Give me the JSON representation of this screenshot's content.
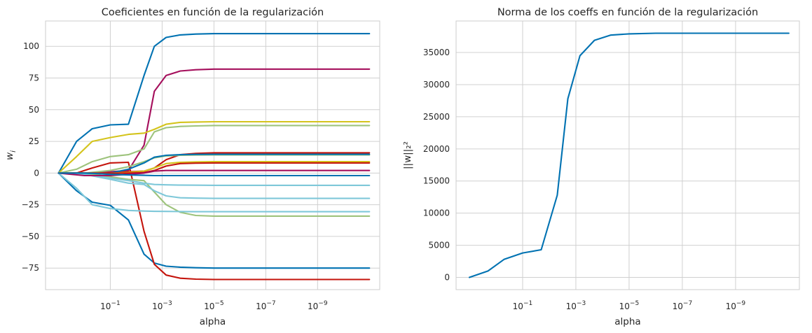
{
  "chart_data": [
    {
      "type": "line",
      "title": "Coeficientes en función de la regularización",
      "xlabel": "alpha",
      "ylabel": "w_i",
      "xscale": "log",
      "x_reversed": true,
      "grid": true,
      "x": [
        10,
        1,
        0.1,
        0.01,
        0.001,
        0.0001,
        1e-05,
        1e-06,
        1e-07,
        1e-08,
        1e-09,
        1e-10,
        1e-11
      ],
      "xlim": [
        31.6,
        4e-12
      ],
      "ylim": [
        -92,
        120
      ],
      "x_ticks": [
        {
          "value": 0.1,
          "base": "10",
          "exp": "−1"
        },
        {
          "value": 0.001,
          "base": "10",
          "exp": "−3"
        },
        {
          "value": 1e-05,
          "base": "10",
          "exp": "−5"
        },
        {
          "value": 1e-07,
          "base": "10",
          "exp": "−7"
        },
        {
          "value": 1e-09,
          "base": "10",
          "exp": "−9"
        }
      ],
      "y_ticks": [
        "100",
        "75",
        "50",
        "25",
        "0",
        "−25",
        "−50",
        "−75"
      ],
      "y_tick_values": [
        100,
        75,
        50,
        25,
        0,
        -25,
        -50,
        -75
      ],
      "series": [
        {
          "color": "#0072b2",
          "x": [
            10,
            2,
            0.5,
            0.1,
            0.02,
            0.005,
            0.002,
            0.0007,
            0.0002,
            5e-05,
            1e-05,
            1e-06,
            1e-11
          ],
          "values": [
            0,
            25,
            35,
            38,
            38.5,
            77,
            100,
            107,
            109,
            109.7,
            110,
            110,
            110
          ]
        },
        {
          "color": "#0072b2",
          "x": [
            10,
            2,
            0.5,
            0.1,
            0.02,
            0.005,
            0.002,
            0.0007,
            0.0002,
            5e-05,
            1e-05,
            1e-06,
            1e-11
          ],
          "values": [
            0,
            -14,
            -23,
            -25.5,
            -37,
            -64,
            -71,
            -73.5,
            -74.3,
            -74.7,
            -75,
            -75,
            -75
          ]
        },
        {
          "color": "#a50f5c",
          "x": [
            10,
            1,
            0.1,
            0.02,
            0.005,
            0.002,
            0.0007,
            0.0002,
            5e-05,
            1e-05,
            1e-06,
            1e-11
          ],
          "values": [
            0,
            0,
            1,
            2,
            22,
            64.5,
            77,
            80.5,
            81.5,
            82,
            82,
            82
          ]
        },
        {
          "color": "#d4c41c",
          "x": [
            10,
            2,
            0.5,
            0.1,
            0.02,
            0.005,
            0.002,
            0.0007,
            0.0002,
            5e-05,
            1e-05,
            1e-06,
            1e-11
          ],
          "values": [
            0,
            13,
            25,
            28,
            30.5,
            31.5,
            34.5,
            38.5,
            40,
            40.3,
            40.5,
            40.5,
            40.5
          ]
        },
        {
          "color": "#9dc37c",
          "x": [
            10,
            2,
            0.5,
            0.1,
            0.02,
            0.005,
            0.002,
            0.0007,
            0.0002,
            5e-05,
            1e-05,
            1e-06,
            1e-11
          ],
          "values": [
            0,
            3,
            9,
            13,
            14.5,
            19,
            32.5,
            35.8,
            36.8,
            37.2,
            37.5,
            37.5,
            37.5
          ]
        },
        {
          "color": "#c4140c",
          "x": [
            10,
            2,
            0.5,
            0.1,
            0.02,
            0.005,
            0.002,
            0.0007,
            0.0002,
            5e-05,
            1e-05,
            1e-06,
            1e-11
          ],
          "values": [
            0,
            0,
            4,
            8,
            8.5,
            -46,
            -72,
            -80.5,
            -83,
            -83.7,
            -84,
            -84,
            -84
          ]
        },
        {
          "color": "#c4140c",
          "x": [
            10,
            1,
            0.1,
            0.02,
            0.005,
            0.002,
            0.0007,
            0.0002,
            5e-05,
            1e-05,
            1e-06,
            1e-11
          ],
          "values": [
            0,
            0,
            0,
            1,
            1.5,
            4,
            10.5,
            14.5,
            15.5,
            16,
            16,
            16
          ]
        },
        {
          "color": "#9dc37c",
          "x": [
            10,
            1,
            0.1,
            0.02,
            0.005,
            0.002,
            0.0007,
            0.0002,
            5e-05,
            1e-05,
            1e-06,
            1e-11
          ],
          "values": [
            0,
            0,
            -3,
            -5,
            -6,
            -15,
            -25,
            -31,
            -33.5,
            -34,
            -34,
            -34
          ]
        },
        {
          "color": "#7fc8d9",
          "x": [
            10,
            2,
            0.5,
            0.1,
            0.02,
            0.005,
            0.002,
            0.0007,
            0.0002,
            5e-05,
            1e-05,
            1e-06,
            1e-11
          ],
          "values": [
            0,
            -12,
            -25,
            -28,
            -29.5,
            -30,
            -30.2,
            -30.3,
            -30.4,
            -30.5,
            -30.5,
            -30.5,
            -30.5
          ]
        },
        {
          "color": "#7fc8d9",
          "x": [
            10,
            1,
            0.1,
            0.02,
            0.005,
            0.002,
            0.0007,
            0.0002,
            5e-05,
            1e-05,
            1e-06,
            1e-11
          ],
          "values": [
            0,
            -1,
            -5,
            -8,
            -9,
            -14,
            -18,
            -19.5,
            -19.8,
            -20,
            -20,
            -20
          ]
        },
        {
          "color": "#7fc8d9",
          "x": [
            10,
            1,
            0.1,
            0.02,
            0.005,
            0.002,
            0.0007,
            0.0002,
            5e-05,
            1e-05,
            1e-06,
            1e-11
          ],
          "values": [
            0,
            -1,
            -4,
            -6,
            -8,
            -9,
            -9.3,
            -9.5,
            -9.6,
            -9.7,
            -9.7,
            -9.7
          ]
        },
        {
          "color": "#9dc37c",
          "x": [
            10,
            1,
            0.1,
            0.02,
            0.005,
            0.002,
            0.0007,
            0.0002,
            5e-05,
            1e-05,
            1e-06,
            1e-11
          ],
          "values": [
            0,
            0,
            2,
            5,
            9,
            12,
            13.5,
            14,
            14.2,
            14.3,
            14.3,
            14.3
          ]
        },
        {
          "color": "#0072b2",
          "x": [
            10,
            1,
            0.1,
            0.02,
            0.005,
            0.002,
            0.0007,
            0.0002,
            5e-05,
            1e-05,
            1e-06,
            1e-11
          ],
          "values": [
            0,
            0,
            0,
            3,
            8,
            12.5,
            14,
            14.5,
            14.7,
            14.8,
            14.8,
            14.8
          ]
        },
        {
          "color": "#d4c41c",
          "x": [
            10,
            1,
            0.1,
            0.02,
            0.005,
            0.002,
            0.0007,
            0.0002,
            5e-05,
            1e-05,
            1e-06,
            1e-11
          ],
          "values": [
            0,
            0,
            0,
            0.5,
            1.5,
            4,
            7.5,
            8.5,
            8.8,
            9,
            9,
            9
          ]
        },
        {
          "color": "#c4140c",
          "x": [
            10,
            1,
            0.1,
            0.02,
            0.005,
            0.002,
            0.0007,
            0.0002,
            5e-05,
            1e-05,
            1e-06,
            1e-11
          ],
          "values": [
            0,
            0,
            0,
            0,
            0.5,
            2,
            5.5,
            7.5,
            7.8,
            8,
            8,
            8
          ]
        },
        {
          "color": "#a50f5c",
          "x": [
            10,
            1,
            0.1,
            0.02,
            0.005,
            0.002,
            0.0007,
            0.0002,
            5e-05,
            1e-05,
            1e-06,
            1e-11
          ],
          "values": [
            0,
            -2,
            -2,
            -1,
            0,
            1.5,
            2,
            2,
            2,
            2,
            2,
            2
          ]
        },
        {
          "color": "#0072b2",
          "x": [
            10,
            1,
            0.1,
            0.02,
            0.005,
            0.002,
            0.0007,
            0.0002,
            5e-05,
            1e-05,
            1e-06,
            1e-11
          ],
          "values": [
            0,
            0,
            -1,
            -1.5,
            -1.8,
            -2,
            -2,
            -2,
            -2,
            -2,
            -2,
            -2
          ]
        }
      ]
    },
    {
      "type": "line",
      "title": "Norma de los coeffs en función de la regularización",
      "xlabel": "alpha",
      "ylabel": "||w||₂²",
      "xscale": "log",
      "x_reversed": true,
      "grid": true,
      "xlim": [
        31.6,
        4e-12
      ],
      "ylim": [
        -1900,
        39900
      ],
      "x_ticks": [
        {
          "value": 0.1,
          "base": "10",
          "exp": "−1"
        },
        {
          "value": 0.001,
          "base": "10",
          "exp": "−3"
        },
        {
          "value": 1e-05,
          "base": "10",
          "exp": "−5"
        },
        {
          "value": 1e-07,
          "base": "10",
          "exp": "−7"
        },
        {
          "value": 1e-09,
          "base": "10",
          "exp": "−9"
        }
      ],
      "y_ticks": [
        "35000",
        "30000",
        "25000",
        "20000",
        "15000",
        "10000",
        "5000",
        "0"
      ],
      "y_tick_values": [
        35000,
        30000,
        25000,
        20000,
        15000,
        10000,
        5000,
        0
      ],
      "series": [
        {
          "color": "#0072b2",
          "x": [
            10,
            2,
            0.5,
            0.1,
            0.02,
            0.005,
            0.002,
            0.0007,
            0.0002,
            5e-05,
            1e-05,
            1e-06,
            1e-11
          ],
          "values": [
            0,
            1000,
            2800,
            3800,
            4300,
            12800,
            27800,
            34500,
            36900,
            37700,
            37900,
            38000,
            38000
          ]
        }
      ]
    }
  ]
}
